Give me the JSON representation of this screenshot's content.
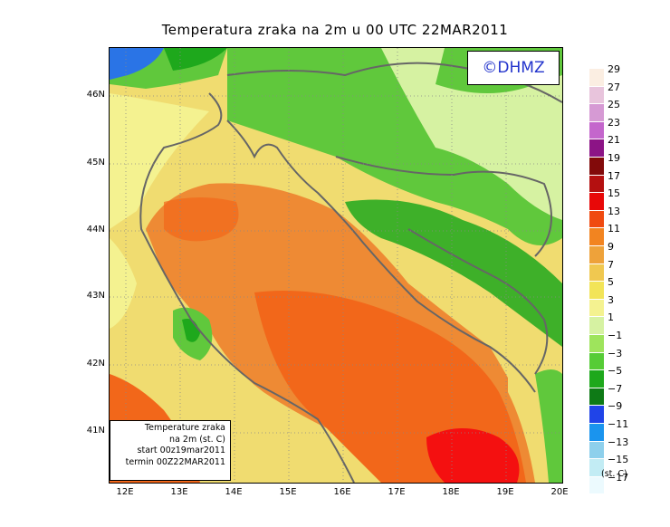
{
  "title": "Temperatura zraka na 2m u 00 UTC 22MAR2011",
  "logo": "©DHMZ",
  "info": {
    "line1": "Temperature zraka",
    "line2": "na 2m (st. C)",
    "line3": "start 00z19mar2011",
    "line4": "termin 00Z22MAR2011"
  },
  "lat_labels": [
    "46N",
    "45N",
    "44N",
    "43N",
    "42N",
    "41N"
  ],
  "lon_labels": [
    "12E",
    "13E",
    "14E",
    "15E",
    "16E",
    "17E",
    "18E",
    "19E",
    "20E"
  ],
  "legend": {
    "unit": "(st. C)",
    "labels": [
      "29",
      "27",
      "25",
      "23",
      "21",
      "19",
      "17",
      "15",
      "13",
      "11",
      "9",
      "7",
      "5",
      "3",
      "1",
      "−1",
      "−3",
      "−5",
      "−7",
      "−9",
      "−11",
      "−13",
      "−15",
      "−17"
    ],
    "colors": [
      "#fbeee2",
      "#e8c4dc",
      "#d69ad4",
      "#c466cc",
      "#8c1486",
      "#820a0a",
      "#b41010",
      "#e80808",
      "#f04a10",
      "#f28420",
      "#eea23a",
      "#f0c850",
      "#f2e458",
      "#f4f290",
      "#d6f2a2",
      "#9ee45c",
      "#56cc36",
      "#1ea81c",
      "#0e7a16",
      "#2044e8",
      "#1a94ee",
      "#8ed0ec",
      "#c2ecf4",
      "#ecfafe"
    ]
  },
  "map_colors": {
    "lowland_land": "#60c83c",
    "cool_land": "#d6f2a2",
    "coast_land": "#f0dc70",
    "warm_sea": "#ee8a34",
    "hot_sea": "#f2671a",
    "hotspot": "#f41010",
    "cold_mountain": "#1ea81c",
    "snow": "#2a74e6"
  }
}
